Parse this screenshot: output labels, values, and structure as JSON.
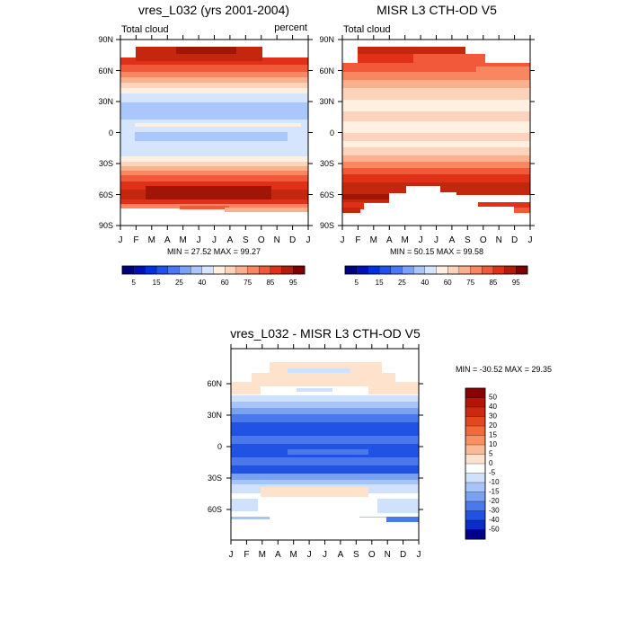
{
  "months": [
    "J",
    "F",
    "M",
    "A",
    "M",
    "J",
    "J",
    "A",
    "S",
    "O",
    "N",
    "D",
    "J"
  ],
  "chart_data": [
    {
      "type": "heatmap",
      "title": "vres_L032 (yrs 2001-2004)",
      "left_label": "Total cloud",
      "right_label": "percent",
      "x_ticks": [
        "J",
        "F",
        "M",
        "A",
        "M",
        "J",
        "J",
        "A",
        "S",
        "O",
        "N",
        "D",
        "J"
      ],
      "y_ticks": [
        "90N",
        "60N",
        "30N",
        "0",
        "30S",
        "60S",
        "90S"
      ],
      "ylim": [
        -90,
        90
      ],
      "stats_text": "MIN = 27.52 MAX = 99.27",
      "min": 27.52,
      "max": 99.27
    },
    {
      "type": "heatmap",
      "title": "MISR L3 CTH-OD V5",
      "left_label": "Total cloud",
      "x_ticks": [
        "J",
        "F",
        "M",
        "A",
        "M",
        "J",
        "J",
        "A",
        "S",
        "O",
        "N",
        "D",
        "J"
      ],
      "y_ticks": [
        "90N",
        "60N",
        "30N",
        "0",
        "30S",
        "60S",
        "90S"
      ],
      "ylim": [
        -90,
        90
      ],
      "stats_text": "MIN = 50.15 MAX = 99.58",
      "min": 50.15,
      "max": 99.58
    },
    {
      "type": "heatmap",
      "title": "vres_L032 - MISR L3 CTH-OD V5",
      "x_ticks": [
        "J",
        "F",
        "M",
        "A",
        "M",
        "J",
        "J",
        "A",
        "S",
        "O",
        "N",
        "D",
        "J"
      ],
      "y_ticks": [
        "60N",
        "30N",
        "0",
        "30S",
        "60S"
      ],
      "stats_text": "MIN = -30.52 MAX = 29.35",
      "min": -30.52,
      "max": 29.35
    }
  ],
  "colorbar_top": {
    "labels": [
      "5",
      "15",
      "25",
      "40",
      "60",
      "75",
      "85",
      "95"
    ],
    "colors": [
      "#00007f",
      "#0010b3",
      "#0030e0",
      "#2050f0",
      "#4a78f5",
      "#7aa2fa",
      "#a9c6fd",
      "#d4e5fd",
      "#fff0e2",
      "#fdd3bc",
      "#fbb08e",
      "#f88660",
      "#f2583a",
      "#e03018",
      "#b51a0a",
      "#7f0000"
    ]
  },
  "colorbar_diff": {
    "labels": [
      "50",
      "40",
      "30",
      "20",
      "15",
      "10",
      "5",
      "0",
      "-5",
      "-10",
      "-15",
      "-20",
      "-30",
      "-40",
      "-50"
    ],
    "colors": [
      "#8b0000",
      "#b01505",
      "#cc2a10",
      "#e2471e",
      "#f46a36",
      "#f8905f",
      "#fab998",
      "#fee2cc",
      "#ffffff",
      "#cfe1fb",
      "#a6c4f7",
      "#7aa2f0",
      "#4b78ea",
      "#2052e3",
      "#0a2cc8",
      "#00008b"
    ]
  }
}
